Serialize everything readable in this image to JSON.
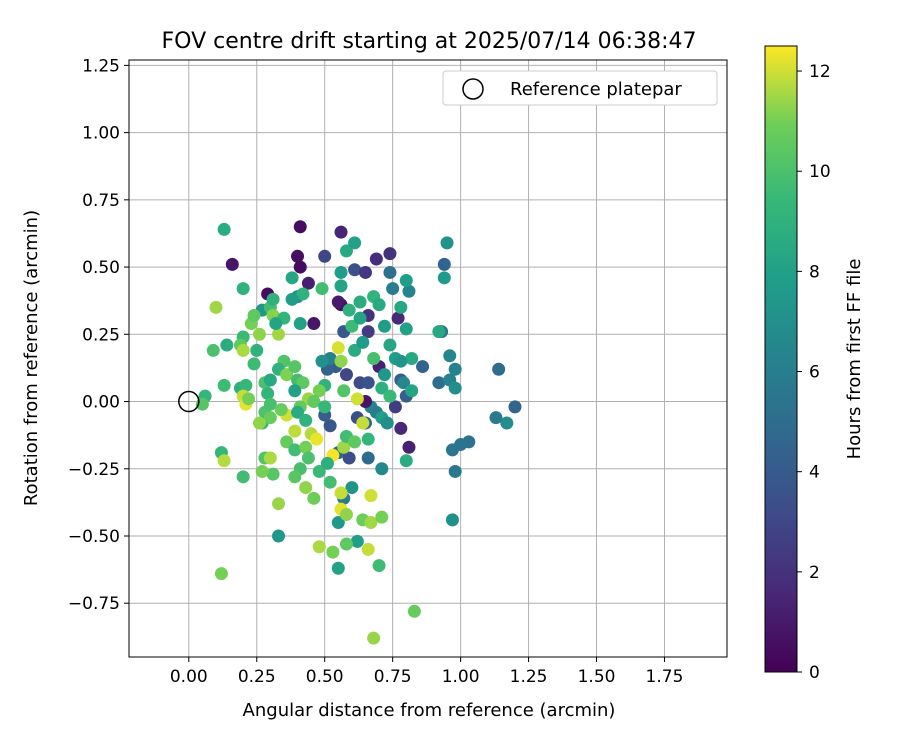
{
  "chart_data": {
    "type": "scatter",
    "title": "FOV centre drift starting at 2025/07/14 06:38:47",
    "xlabel": "Angular distance from reference (arcmin)",
    "ylabel": "Rotation from reference (arcmin)",
    "xlim": [
      -0.22,
      1.98
    ],
    "ylim": [
      -0.95,
      1.27
    ],
    "xticks": [
      "0.00",
      "0.25",
      "0.50",
      "0.75",
      "1.00",
      "1.25",
      "1.50",
      "1.75"
    ],
    "xtick_values": [
      0,
      0.25,
      0.5,
      0.75,
      1.0,
      1.25,
      1.5,
      1.75
    ],
    "yticks": [
      "−0.75",
      "−0.50",
      "−0.25",
      "0.00",
      "0.25",
      "0.50",
      "0.75",
      "1.00",
      "1.25"
    ],
    "ytick_values": [
      -0.75,
      -0.5,
      -0.25,
      0,
      0.25,
      0.5,
      0.75,
      1.0,
      1.25
    ],
    "grid": true,
    "legend": {
      "placement": "top-right",
      "entries": [
        "Reference platepar"
      ]
    },
    "reference_point": {
      "x": 0.0,
      "y": 0.0
    },
    "colorbar": {
      "label": "Hours from first FF file",
      "min": 0,
      "max": 12.5,
      "ticks": [
        "0",
        "2",
        "4",
        "6",
        "8",
        "10",
        "12"
      ],
      "tick_values": [
        0,
        2,
        4,
        6,
        8,
        10,
        12
      ],
      "colormap": "viridis"
    },
    "points": [
      {
        "x": 0.41,
        "y": 0.65,
        "h": 0.5
      },
      {
        "x": 0.56,
        "y": 0.63,
        "h": 1.5
      },
      {
        "x": 0.16,
        "y": 0.51,
        "h": 0.8
      },
      {
        "x": 0.4,
        "y": 0.54,
        "h": 0.6
      },
      {
        "x": 0.41,
        "y": 0.5,
        "h": 0.4
      },
      {
        "x": 0.5,
        "y": 0.54,
        "h": 3.0
      },
      {
        "x": 0.69,
        "y": 0.53,
        "h": 1.8
      },
      {
        "x": 0.74,
        "y": 0.55,
        "h": 2.0
      },
      {
        "x": 0.61,
        "y": 0.49,
        "h": 3.5
      },
      {
        "x": 0.65,
        "y": 0.48,
        "h": 2.2
      },
      {
        "x": 0.94,
        "y": 0.51,
        "h": 4.5
      },
      {
        "x": 0.95,
        "y": 0.59,
        "h": 7.2
      },
      {
        "x": 0.44,
        "y": 0.44,
        "h": 1.2
      },
      {
        "x": 0.29,
        "y": 0.4,
        "h": 0.5
      },
      {
        "x": 0.46,
        "y": 0.29,
        "h": 0.9
      },
      {
        "x": 0.56,
        "y": 0.36,
        "h": 0.7
      },
      {
        "x": 0.55,
        "y": 0.37,
        "h": 1.0
      },
      {
        "x": 0.66,
        "y": 0.32,
        "h": 2.0
      },
      {
        "x": 0.77,
        "y": 0.31,
        "h": 1.6
      },
      {
        "x": 0.66,
        "y": 0.26,
        "h": 2.4
      },
      {
        "x": 0.7,
        "y": 0.13,
        "h": 1.3
      },
      {
        "x": 0.57,
        "y": 0.26,
        "h": 3.8
      },
      {
        "x": 0.74,
        "y": 0.48,
        "h": 5.2
      },
      {
        "x": 0.75,
        "y": 0.42,
        "h": 6.0
      },
      {
        "x": 0.81,
        "y": 0.41,
        "h": 6.4
      },
      {
        "x": 0.86,
        "y": 0.13,
        "h": 4.5
      },
      {
        "x": 0.92,
        "y": 0.07,
        "h": 5.0
      },
      {
        "x": 0.96,
        "y": 0.08,
        "h": 6.3
      },
      {
        "x": 0.98,
        "y": 0.05,
        "h": 7.0
      },
      {
        "x": 0.96,
        "y": 0.17,
        "h": 6.5
      },
      {
        "x": 0.98,
        "y": 0.12,
        "h": 6.2
      },
      {
        "x": 0.93,
        "y": 0.26,
        "h": 5.5
      },
      {
        "x": 0.92,
        "y": 0.26,
        "h": 8.4
      },
      {
        "x": 1.14,
        "y": 0.12,
        "h": 5.0
      },
      {
        "x": 1.2,
        "y": -0.02,
        "h": 4.5
      },
      {
        "x": 1.13,
        "y": -0.06,
        "h": 5.7
      },
      {
        "x": 1.17,
        "y": -0.08,
        "h": 6.8
      },
      {
        "x": 1.03,
        "y": -0.15,
        "h": 5.2
      },
      {
        "x": 1.0,
        "y": -0.16,
        "h": 5.4
      },
      {
        "x": 0.97,
        "y": -0.18,
        "h": 5.5
      },
      {
        "x": 0.98,
        "y": -0.26,
        "h": 5.6
      },
      {
        "x": 0.97,
        "y": -0.44,
        "h": 7.0
      },
      {
        "x": 0.81,
        "y": -0.17,
        "h": 1.3
      },
      {
        "x": 0.78,
        "y": -0.1,
        "h": 1.6
      },
      {
        "x": 0.76,
        "y": -0.02,
        "h": 2.5
      },
      {
        "x": 0.78,
        "y": 0.08,
        "h": 4.0
      },
      {
        "x": 0.8,
        "y": 0.02,
        "h": 4.2
      },
      {
        "x": 0.79,
        "y": 0.07,
        "h": 6.5
      },
      {
        "x": 0.82,
        "y": 0.04,
        "h": 8.2
      },
      {
        "x": 0.67,
        "y": -0.02,
        "h": 6.4
      },
      {
        "x": 0.69,
        "y": -0.04,
        "h": 5.8
      },
      {
        "x": 0.65,
        "y": -0.08,
        "h": 4.6
      },
      {
        "x": 0.62,
        "y": -0.06,
        "h": 3.4
      },
      {
        "x": 0.65,
        "y": 0.0,
        "h": 0.8
      },
      {
        "x": 0.63,
        "y": 0.07,
        "h": 3.2
      },
      {
        "x": 0.66,
        "y": 0.07,
        "h": 3.6
      },
      {
        "x": 0.58,
        "y": 0.1,
        "h": 3.0
      },
      {
        "x": 0.54,
        "y": 0.13,
        "h": 4.0
      },
      {
        "x": 0.51,
        "y": 0.12,
        "h": 4.4
      },
      {
        "x": 0.52,
        "y": 0.16,
        "h": 6.1
      },
      {
        "x": 0.49,
        "y": 0.15,
        "h": 7.1
      },
      {
        "x": 0.52,
        "y": -0.09,
        "h": 3.8
      },
      {
        "x": 0.5,
        "y": -0.05,
        "h": 4.1
      },
      {
        "x": 0.55,
        "y": -0.19,
        "h": 4.5
      },
      {
        "x": 0.59,
        "y": -0.21,
        "h": 3.3
      },
      {
        "x": 0.66,
        "y": -0.21,
        "h": 4.8
      },
      {
        "x": 0.71,
        "y": -0.25,
        "h": 6.6
      },
      {
        "x": 0.6,
        "y": -0.32,
        "h": 7.2
      },
      {
        "x": 0.57,
        "y": -0.36,
        "h": 5.8
      },
      {
        "x": 0.55,
        "y": -0.45,
        "h": 7.5
      },
      {
        "x": 0.62,
        "y": -0.52,
        "h": 7.8
      },
      {
        "x": 0.33,
        "y": -0.5,
        "h": 7.4
      },
      {
        "x": 0.55,
        "y": -0.62,
        "h": 8.0
      },
      {
        "x": 0.8,
        "y": -0.22,
        "h": 8.6
      },
      {
        "x": 0.7,
        "y": -0.61,
        "h": 9.6
      },
      {
        "x": 0.83,
        "y": -0.78,
        "h": 10.7
      },
      {
        "x": 0.68,
        "y": -0.88,
        "h": 11.4
      },
      {
        "x": 0.12,
        "y": -0.64,
        "h": 11.0
      },
      {
        "x": 0.13,
        "y": 0.64,
        "h": 8.6
      },
      {
        "x": 0.2,
        "y": 0.42,
        "h": 9.0
      },
      {
        "x": 0.1,
        "y": 0.35,
        "h": 11.5
      },
      {
        "x": 0.23,
        "y": 0.29,
        "h": 11.0
      },
      {
        "x": 0.2,
        "y": 0.24,
        "h": 9.5
      },
      {
        "x": 0.27,
        "y": 0.34,
        "h": 7.4
      },
      {
        "x": 0.3,
        "y": 0.35,
        "h": 9.8
      },
      {
        "x": 0.31,
        "y": 0.32,
        "h": 11.2
      },
      {
        "x": 0.31,
        "y": 0.38,
        "h": 9.0
      },
      {
        "x": 0.33,
        "y": 0.25,
        "h": 11.5
      },
      {
        "x": 0.38,
        "y": 0.46,
        "h": 8.3
      },
      {
        "x": 0.4,
        "y": 0.39,
        "h": 7.0
      },
      {
        "x": 0.42,
        "y": 0.4,
        "h": 9.0
      },
      {
        "x": 0.41,
        "y": 0.29,
        "h": 8.0
      },
      {
        "x": 0.35,
        "y": 0.31,
        "h": 9.2
      },
      {
        "x": 0.14,
        "y": 0.21,
        "h": 8.7
      },
      {
        "x": 0.09,
        "y": 0.19,
        "h": 10.0
      },
      {
        "x": 0.19,
        "y": 0.21,
        "h": 10.5
      },
      {
        "x": 0.2,
        "y": 0.19,
        "h": 11.6
      },
      {
        "x": 0.25,
        "y": 0.19,
        "h": 9.0
      },
      {
        "x": 0.24,
        "y": 0.14,
        "h": 9.6
      },
      {
        "x": 0.13,
        "y": 0.06,
        "h": 9.6
      },
      {
        "x": 0.19,
        "y": 0.05,
        "h": 8.8
      },
      {
        "x": 0.21,
        "y": 0.06,
        "h": 9.4
      },
      {
        "x": 0.06,
        "y": 0.02,
        "h": 9.3
      },
      {
        "x": 0.05,
        "y": -0.01,
        "h": 10.3
      },
      {
        "x": 0.2,
        "y": 0.02,
        "h": 11.9
      },
      {
        "x": 0.21,
        "y": -0.01,
        "h": 12.2
      },
      {
        "x": 0.22,
        "y": 0.01,
        "h": 11.0
      },
      {
        "x": 0.28,
        "y": 0.07,
        "h": 10.0
      },
      {
        "x": 0.3,
        "y": 0.08,
        "h": 8.5
      },
      {
        "x": 0.29,
        "y": 0.03,
        "h": 9.2
      },
      {
        "x": 0.28,
        "y": -0.04,
        "h": 10.1
      },
      {
        "x": 0.27,
        "y": -0.08,
        "h": 9.4
      },
      {
        "x": 0.3,
        "y": -0.06,
        "h": 10.7
      },
      {
        "x": 0.26,
        "y": -0.08,
        "h": 11.3
      },
      {
        "x": 0.35,
        "y": 0.15,
        "h": 10.2
      },
      {
        "x": 0.33,
        "y": 0.12,
        "h": 9.0
      },
      {
        "x": 0.36,
        "y": 0.1,
        "h": 11.1
      },
      {
        "x": 0.39,
        "y": 0.13,
        "h": 10.3
      },
      {
        "x": 0.4,
        "y": 0.08,
        "h": 9.8
      },
      {
        "x": 0.42,
        "y": 0.07,
        "h": 10.5
      },
      {
        "x": 0.44,
        "y": 0.01,
        "h": 11.4
      },
      {
        "x": 0.41,
        "y": -0.02,
        "h": 10.6
      },
      {
        "x": 0.36,
        "y": -0.05,
        "h": 12.0
      },
      {
        "x": 0.39,
        "y": -0.11,
        "h": 11.8
      },
      {
        "x": 0.36,
        "y": -0.15,
        "h": 10.7
      },
      {
        "x": 0.39,
        "y": -0.18,
        "h": 9.7
      },
      {
        "x": 0.43,
        "y": -0.17,
        "h": 11.0
      },
      {
        "x": 0.45,
        "y": -0.12,
        "h": 11.7
      },
      {
        "x": 0.47,
        "y": -0.14,
        "h": 12.3
      },
      {
        "x": 0.41,
        "y": -0.25,
        "h": 9.9
      },
      {
        "x": 0.39,
        "y": -0.28,
        "h": 10.4
      },
      {
        "x": 0.43,
        "y": -0.32,
        "h": 11.3
      },
      {
        "x": 0.46,
        "y": -0.36,
        "h": 10.9
      },
      {
        "x": 0.33,
        "y": -0.38,
        "h": 11.4
      },
      {
        "x": 0.31,
        "y": -0.27,
        "h": 10.3
      },
      {
        "x": 0.27,
        "y": -0.26,
        "h": 11.0
      },
      {
        "x": 0.28,
        "y": -0.21,
        "h": 10.2
      },
      {
        "x": 0.3,
        "y": -0.21,
        "h": 11.6
      },
      {
        "x": 0.12,
        "y": -0.19,
        "h": 9.3
      },
      {
        "x": 0.13,
        "y": -0.22,
        "h": 11.7
      },
      {
        "x": 0.2,
        "y": -0.28,
        "h": 9.7
      },
      {
        "x": 0.48,
        "y": -0.54,
        "h": 11.6
      },
      {
        "x": 0.53,
        "y": -0.56,
        "h": 11.0
      },
      {
        "x": 0.58,
        "y": -0.53,
        "h": 10.5
      },
      {
        "x": 0.56,
        "y": -0.4,
        "h": 12.2
      },
      {
        "x": 0.56,
        "y": -0.34,
        "h": 11.9
      },
      {
        "x": 0.58,
        "y": -0.42,
        "h": 11.3
      },
      {
        "x": 0.64,
        "y": -0.44,
        "h": 10.8
      },
      {
        "x": 0.67,
        "y": -0.45,
        "h": 11.5
      },
      {
        "x": 0.71,
        "y": -0.43,
        "h": 11.0
      },
      {
        "x": 0.66,
        "y": -0.55,
        "h": 11.9
      },
      {
        "x": 0.67,
        "y": -0.35,
        "h": 12.0
      },
      {
        "x": 0.53,
        "y": -0.2,
        "h": 12.4
      },
      {
        "x": 0.57,
        "y": -0.17,
        "h": 11.5
      },
      {
        "x": 0.58,
        "y": -0.13,
        "h": 9.7
      },
      {
        "x": 0.61,
        "y": -0.15,
        "h": 10.5
      },
      {
        "x": 0.66,
        "y": -0.14,
        "h": 9.3
      },
      {
        "x": 0.64,
        "y": -0.08,
        "h": 11.9
      },
      {
        "x": 0.62,
        "y": 0.01,
        "h": 12.0
      },
      {
        "x": 0.57,
        "y": 0.04,
        "h": 10.2
      },
      {
        "x": 0.5,
        "y": 0.06,
        "h": 9.0
      },
      {
        "x": 0.48,
        "y": 0.04,
        "h": 11.0
      },
      {
        "x": 0.46,
        "y": 0.0,
        "h": 10.6
      },
      {
        "x": 0.5,
        "y": -0.02,
        "h": 9.4
      },
      {
        "x": 0.56,
        "y": 0.15,
        "h": 11.3
      },
      {
        "x": 0.55,
        "y": 0.2,
        "h": 12.1
      },
      {
        "x": 0.61,
        "y": 0.19,
        "h": 8.6
      },
      {
        "x": 0.64,
        "y": 0.22,
        "h": 7.6
      },
      {
        "x": 0.6,
        "y": 0.28,
        "h": 9.6
      },
      {
        "x": 0.63,
        "y": 0.31,
        "h": 8.2
      },
      {
        "x": 0.59,
        "y": 0.34,
        "h": 9.0
      },
      {
        "x": 0.63,
        "y": 0.37,
        "h": 8.7
      },
      {
        "x": 0.68,
        "y": 0.39,
        "h": 9.1
      },
      {
        "x": 0.7,
        "y": 0.36,
        "h": 8.5
      },
      {
        "x": 0.72,
        "y": 0.28,
        "h": 7.7
      },
      {
        "x": 0.74,
        "y": 0.21,
        "h": 8.3
      },
      {
        "x": 0.76,
        "y": 0.16,
        "h": 7.9
      },
      {
        "x": 0.68,
        "y": 0.16,
        "h": 9.9
      },
      {
        "x": 0.72,
        "y": 0.1,
        "h": 7.4
      },
      {
        "x": 0.71,
        "y": 0.05,
        "h": 8.9
      },
      {
        "x": 0.74,
        "y": 0.02,
        "h": 9.5
      },
      {
        "x": 0.71,
        "y": -0.06,
        "h": 7.8
      },
      {
        "x": 0.73,
        "y": -0.08,
        "h": 6.9
      },
      {
        "x": 0.56,
        "y": 0.48,
        "h": 7.8
      },
      {
        "x": 0.58,
        "y": 0.56,
        "h": 8.5
      },
      {
        "x": 0.61,
        "y": 0.59,
        "h": 8.0
      },
      {
        "x": 0.56,
        "y": 0.43,
        "h": 8.2
      },
      {
        "x": 0.49,
        "y": 0.42,
        "h": 9.7
      },
      {
        "x": 0.38,
        "y": 0.38,
        "h": 7.7
      },
      {
        "x": 0.32,
        "y": 0.29,
        "h": 8.2
      },
      {
        "x": 0.24,
        "y": 0.32,
        "h": 10.5
      },
      {
        "x": 0.26,
        "y": 0.25,
        "h": 11.3
      },
      {
        "x": 0.39,
        "y": 0.04,
        "h": 8.0
      },
      {
        "x": 0.4,
        "y": -0.04,
        "h": 8.6
      },
      {
        "x": 0.43,
        "y": -0.07,
        "h": 9.1
      },
      {
        "x": 0.3,
        "y": -0.01,
        "h": 9.9
      },
      {
        "x": 0.34,
        "y": -0.03,
        "h": 10.8
      },
      {
        "x": 0.44,
        "y": -0.21,
        "h": 10.0
      },
      {
        "x": 0.48,
        "y": -0.26,
        "h": 9.5
      },
      {
        "x": 0.51,
        "y": -0.23,
        "h": 8.8
      },
      {
        "x": 0.52,
        "y": -0.3,
        "h": 9.8
      },
      {
        "x": 0.8,
        "y": 0.45,
        "h": 7.8
      },
      {
        "x": 0.78,
        "y": 0.35,
        "h": 8.4
      },
      {
        "x": 0.8,
        "y": 0.27,
        "h": 8.0
      },
      {
        "x": 0.94,
        "y": 0.46,
        "h": 7.6
      },
      {
        "x": 0.82,
        "y": 0.16,
        "h": 8.5
      },
      {
        "x": 0.78,
        "y": 0.15,
        "h": 7.3
      }
    ]
  }
}
